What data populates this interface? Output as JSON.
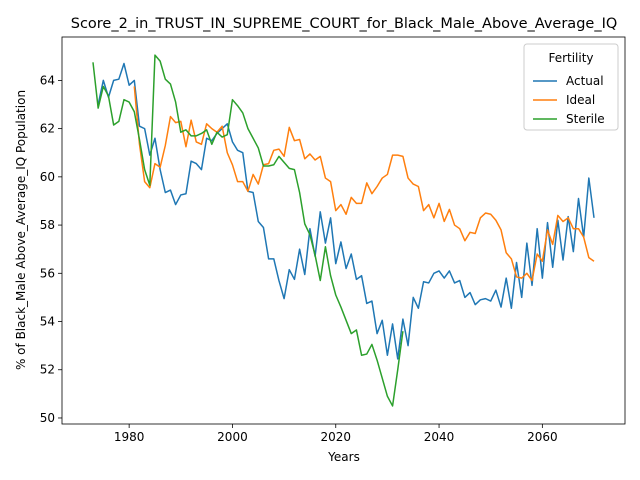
{
  "chart_data": {
    "type": "line",
    "title": "Score_2_in_TRUST_IN_SUPREME_COURT_for_Black_Male_Above_Average_IQ",
    "xlabel": "Years",
    "ylabel": "% of Black_Male Above_Average_IQ Population",
    "xlim": [
      1967,
      2076
    ],
    "ylim": [
      49.75,
      65.8
    ],
    "xticks": [
      1980,
      2000,
      2020,
      2040,
      2060
    ],
    "yticks": [
      50,
      52,
      54,
      56,
      58,
      60,
      62,
      64
    ],
    "grid": false,
    "legend": {
      "title": "Fertility",
      "position": "top-right"
    },
    "series": [
      {
        "name": "Actual",
        "color": "#1f77b4",
        "x_start": 1974,
        "values": [
          63.0,
          64.0,
          63.3,
          64.0,
          64.05,
          64.7,
          63.8,
          64.0,
          62.1,
          62.0,
          60.9,
          61.6,
          60.3,
          59.35,
          59.45,
          58.85,
          59.25,
          59.3,
          60.65,
          60.55,
          60.3,
          61.6,
          61.5,
          61.8,
          62.0,
          62.2,
          61.45,
          61.1,
          61.0,
          59.4,
          59.35,
          58.15,
          57.9,
          56.6,
          56.6,
          55.7,
          54.95,
          56.15,
          55.75,
          57.0,
          55.95,
          57.85,
          56.7,
          58.55,
          57.25,
          58.3,
          56.4,
          57.3,
          56.2,
          56.8,
          55.75,
          55.9,
          54.75,
          54.85,
          53.5,
          54.05,
          52.6,
          53.9,
          52.45,
          54.1,
          53.0,
          55.0,
          54.55,
          55.65,
          55.6,
          56.0,
          56.1,
          55.8,
          56.1,
          55.6,
          55.7,
          55.0,
          55.2,
          54.7,
          54.9,
          54.95,
          54.85,
          55.3,
          54.6,
          55.8,
          54.55,
          56.45,
          55.0,
          57.25,
          55.5,
          57.85,
          55.8,
          58.1,
          56.25,
          58.2,
          56.55,
          58.35,
          56.9,
          59.1,
          57.5,
          59.95,
          58.3
        ]
      },
      {
        "name": "Ideal",
        "color": "#ff7f0e",
        "x_start": 1981,
        "values": [
          63.75,
          61.35,
          59.8,
          59.55,
          60.55,
          60.4,
          61.3,
          62.5,
          62.25,
          62.3,
          61.25,
          62.35,
          61.45,
          61.35,
          62.2,
          62.0,
          61.85,
          62.1,
          61.0,
          60.5,
          59.8,
          59.8,
          59.4,
          60.1,
          59.7,
          60.5,
          60.55,
          61.1,
          61.15,
          60.85,
          62.05,
          61.5,
          61.55,
          60.75,
          60.95,
          60.7,
          60.85,
          59.95,
          59.8,
          58.6,
          58.85,
          58.45,
          59.15,
          58.9,
          58.9,
          59.75,
          59.3,
          59.6,
          59.95,
          60.1,
          60.9,
          60.9,
          60.85,
          59.95,
          59.7,
          59.6,
          58.6,
          58.85,
          58.3,
          58.9,
          58.15,
          58.65,
          58.0,
          57.85,
          57.35,
          57.7,
          57.65,
          58.3,
          58.5,
          58.45,
          58.2,
          57.8,
          56.85,
          56.6,
          55.85,
          55.8,
          56.0,
          55.7,
          56.8,
          56.5,
          57.8,
          57.2,
          58.4,
          58.15,
          58.3,
          57.85,
          57.85,
          57.5,
          56.65,
          56.5
        ]
      },
      {
        "name": "Sterile",
        "color": "#2ca02c",
        "x_start": 1973,
        "values": [
          64.75,
          62.85,
          63.75,
          63.35,
          62.15,
          62.3,
          63.2,
          63.1,
          62.7,
          61.55,
          60.3,
          59.65,
          65.05,
          64.8,
          64.05,
          63.85,
          63.1,
          61.85,
          61.95,
          61.7,
          61.7,
          61.8,
          61.95,
          61.35,
          61.85,
          61.65,
          61.75,
          63.2,
          62.95,
          62.65,
          62.0,
          61.6,
          61.2,
          60.45,
          60.45,
          60.5,
          60.85,
          60.6,
          60.35,
          60.3,
          59.35,
          58.05,
          57.6,
          56.75,
          55.7,
          57.1,
          55.9,
          55.1,
          54.6,
          54.05,
          53.5,
          53.65,
          52.6,
          52.65,
          53.05,
          52.4,
          51.65,
          50.9,
          50.5,
          52.0,
          53.6
        ]
      }
    ]
  }
}
